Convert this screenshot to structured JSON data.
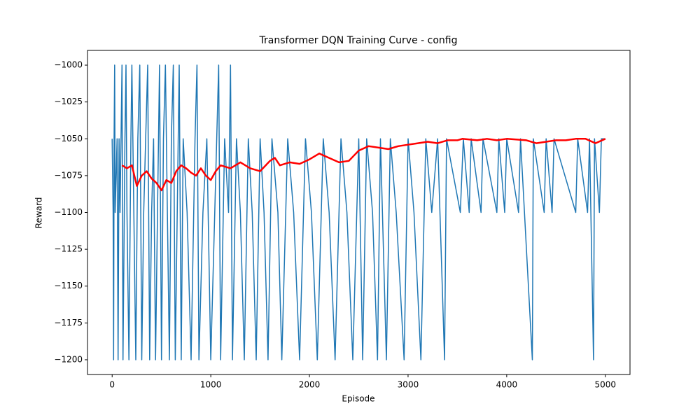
{
  "chart_data": {
    "type": "line",
    "title": "Transformer DQN Training Curve - config",
    "xlabel": "Episode",
    "ylabel": "Reward",
    "xlim": [
      -250,
      5250
    ],
    "ylim": [
      -1210,
      -990
    ],
    "xticks": [
      0,
      1000,
      2000,
      3000,
      4000,
      5000
    ],
    "yticks": [
      {
        "value": -1000,
        "label": "−1000"
      },
      {
        "value": -1025,
        "label": "−1025"
      },
      {
        "value": -1050,
        "label": "−1050"
      },
      {
        "value": -1075,
        "label": "−1075"
      },
      {
        "value": -1100,
        "label": "−1100"
      },
      {
        "value": -1125,
        "label": "−1125"
      },
      {
        "value": -1150,
        "label": "−1150"
      },
      {
        "value": -1175,
        "label": "−1175"
      },
      {
        "value": -1200,
        "label": "−1200"
      }
    ],
    "series": [
      {
        "color": "#1f77b4",
        "width": 1.5,
        "x": [
          0,
          10,
          15,
          20,
          25,
          30,
          50,
          60,
          70,
          80,
          100,
          110,
          130,
          140,
          150,
          170,
          190,
          200,
          220,
          240,
          260,
          280,
          300,
          320,
          340,
          360,
          380,
          400,
          420,
          440,
          460,
          480,
          500,
          520,
          540,
          560,
          580,
          600,
          620,
          640,
          660,
          680,
          700,
          720,
          760,
          800,
          840,
          860,
          880,
          920,
          960,
          1000,
          1040,
          1080,
          1100,
          1140,
          1180,
          1200,
          1220,
          1260,
          1300,
          1340,
          1380,
          1420,
          1460,
          1500,
          1540,
          1580,
          1620,
          1680,
          1720,
          1780,
          1840,
          1900,
          1960,
          2020,
          2080,
          2140,
          2200,
          2260,
          2320,
          2380,
          2440,
          2500,
          2540,
          2580,
          2640,
          2690,
          2720,
          2780,
          2820,
          2880,
          2960,
          3000,
          3060,
          3130,
          3180,
          3240,
          3300,
          3370,
          3390,
          3530,
          3560,
          3620,
          3640,
          3740,
          3760,
          3900,
          3920,
          3980,
          4000,
          4120,
          4140,
          4260,
          4270,
          4380,
          4400,
          4460,
          4480,
          4700,
          4720,
          4820,
          4840,
          4880,
          4890,
          4940,
          4960,
          5000
        ],
        "values": [
          -1050,
          -1100,
          -1200,
          -1050,
          -1000,
          -1100,
          -1050,
          -1200,
          -1050,
          -1100,
          -1000,
          -1200,
          -1050,
          -1000,
          -1100,
          -1200,
          -1050,
          -1000,
          -1100,
          -1200,
          -1050,
          -1000,
          -1200,
          -1100,
          -1050,
          -1000,
          -1200,
          -1100,
          -1050,
          -1200,
          -1100,
          -1000,
          -1200,
          -1050,
          -1000,
          -1100,
          -1200,
          -1050,
          -1000,
          -1200,
          -1100,
          -1000,
          -1200,
          -1050,
          -1100,
          -1200,
          -1050,
          -1000,
          -1200,
          -1100,
          -1050,
          -1200,
          -1100,
          -1000,
          -1200,
          -1050,
          -1100,
          -1000,
          -1200,
          -1050,
          -1100,
          -1200,
          -1050,
          -1100,
          -1200,
          -1050,
          -1100,
          -1200,
          -1050,
          -1100,
          -1200,
          -1050,
          -1100,
          -1200,
          -1050,
          -1100,
          -1200,
          -1050,
          -1100,
          -1200,
          -1050,
          -1100,
          -1200,
          -1050,
          -1200,
          -1050,
          -1100,
          -1200,
          -1050,
          -1200,
          -1050,
          -1100,
          -1200,
          -1050,
          -1100,
          -1200,
          -1050,
          -1100,
          -1050,
          -1200,
          -1050,
          -1100,
          -1050,
          -1100,
          -1050,
          -1100,
          -1050,
          -1100,
          -1050,
          -1100,
          -1050,
          -1100,
          -1050,
          -1200,
          -1050,
          -1100,
          -1050,
          -1100,
          -1050,
          -1100,
          -1050,
          -1100,
          -1050,
          -1200,
          -1050,
          -1100,
          -1050,
          -1050
        ]
      },
      {
        "color": "#ff0000",
        "width": 2.5,
        "x": [
          100,
          150,
          200,
          250,
          300,
          350,
          400,
          450,
          500,
          550,
          600,
          650,
          700,
          750,
          800,
          850,
          900,
          950,
          1000,
          1050,
          1100,
          1200,
          1300,
          1400,
          1500,
          1600,
          1650,
          1700,
          1800,
          1900,
          2000,
          2100,
          2200,
          2300,
          2400,
          2500,
          2600,
          2700,
          2800,
          2900,
          3000,
          3100,
          3200,
          3300,
          3400,
          3500,
          3550,
          3700,
          3800,
          3900,
          4000,
          4200,
          4300,
          4400,
          4500,
          4600,
          4700,
          4800,
          4900,
          5000
        ],
        "values": [
          -1068,
          -1070,
          -1068,
          -1082,
          -1075,
          -1072,
          -1077,
          -1080,
          -1085,
          -1078,
          -1080,
          -1072,
          -1068,
          -1070,
          -1073,
          -1075,
          -1070,
          -1075,
          -1078,
          -1072,
          -1068,
          -1070,
          -1066,
          -1070,
          -1072,
          -1065,
          -1063,
          -1068,
          -1066,
          -1067,
          -1064,
          -1060,
          -1063,
          -1066,
          -1065,
          -1058,
          -1055,
          -1056,
          -1057,
          -1055,
          -1054,
          -1053,
          -1052,
          -1053,
          -1051,
          -1051,
          -1050,
          -1051,
          -1050,
          -1051,
          -1050,
          -1051,
          -1053,
          -1052,
          -1051,
          -1051,
          -1050,
          -1050,
          -1053,
          -1050
        ]
      }
    ]
  }
}
